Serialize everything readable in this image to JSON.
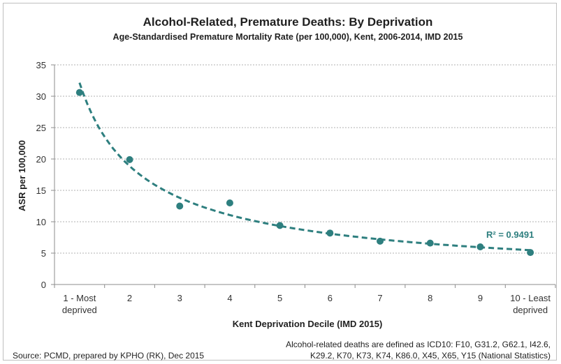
{
  "chart_data": {
    "type": "scatter",
    "title": "Alcohol-Related, Premature Deaths: By Deprivation",
    "subtitle": "Age-Standardised Premature Mortality Rate (per 100,000), Kent, 2006-2014, IMD 2015",
    "xlabel": "Kent Deprivation Decile (IMD 2015)",
    "ylabel": "ASR per 100,000",
    "ylim": [
      0,
      35
    ],
    "yticks": [
      "0",
      "5",
      "10",
      "15",
      "20",
      "25",
      "30",
      "35"
    ],
    "categories": [
      [
        "1 - Most",
        "deprived"
      ],
      [
        "2"
      ],
      [
        "3"
      ],
      [
        "4"
      ],
      [
        "5"
      ],
      [
        "6"
      ],
      [
        "7"
      ],
      [
        "8"
      ],
      [
        "9"
      ],
      [
        "10 - Least",
        "deprived"
      ]
    ],
    "x": [
      1,
      2,
      3,
      4,
      5,
      6,
      7,
      8,
      9,
      10
    ],
    "values": [
      30.6,
      19.9,
      12.5,
      13.0,
      9.4,
      8.2,
      6.9,
      6.6,
      6.0,
      5.1
    ],
    "trendline": {
      "type": "power",
      "r_squared_label": "R² = 0.9491"
    },
    "grid": "horizontal dashed",
    "colors": {
      "marker": "#2e7f7f",
      "trend": "#2e7f7f",
      "grid": "#b0b0b0"
    },
    "source_note": "Source: PCMD, prepared by KPHO (RK), Dec 2015",
    "definition_note": [
      "Alcohol-related deaths are defined as ICD10: F10, G31.2, G62.1, I42.6,",
      "K29.2, K70, K73, K74, K86.0, X45, X65, Y15 (National Statistics)"
    ]
  }
}
